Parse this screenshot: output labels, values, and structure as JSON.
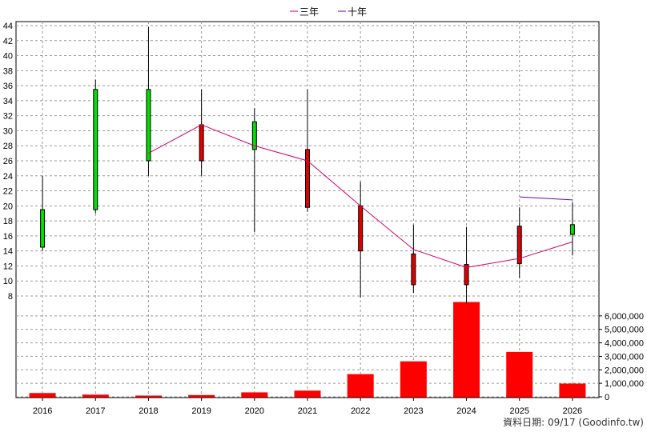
{
  "chart_data": {
    "type": "candlestick",
    "categories": [
      "2016",
      "2017",
      "2018",
      "2019",
      "2020",
      "2021",
      "2022",
      "2023",
      "2024",
      "2025",
      "2026"
    ],
    "candles": [
      {
        "open": 14.5,
        "close": 19.5,
        "high": 24.0,
        "low": 14.0
      },
      {
        "open": 19.5,
        "close": 35.5,
        "high": 36.8,
        "low": 19.0
      },
      {
        "open": 26.0,
        "close": 35.5,
        "high": 43.8,
        "low": 24.0
      },
      {
        "open": 30.8,
        "close": 26.0,
        "high": 35.5,
        "low": 24.0
      },
      {
        "open": 27.5,
        "close": 31.2,
        "high": 33.0,
        "low": 16.5
      },
      {
        "open": 27.5,
        "close": 19.8,
        "high": 35.5,
        "low": 19.2
      },
      {
        "open": 20.0,
        "close": 14.0,
        "high": 23.2,
        "low": 7.8
      },
      {
        "open": 13.6,
        "close": 9.5,
        "high": 17.5,
        "low": 8.4
      },
      {
        "open": 12.2,
        "close": 9.5,
        "high": 17.2,
        "low": 7.0
      },
      {
        "open": 17.3,
        "close": 12.3,
        "high": 19.8,
        "low": 10.4
      },
      {
        "open": 16.2,
        "close": 17.5,
        "high": 20.5,
        "low": 13.4
      }
    ],
    "lines": [
      {
        "name": "三年",
        "color": "#d4006e",
        "values": [
          null,
          null,
          27.0,
          30.8,
          28.0,
          26.0,
          20.0,
          14.2,
          11.8,
          13.0,
          15.2
        ]
      },
      {
        "name": "十年",
        "color": "#6a00cc",
        "values": [
          null,
          null,
          null,
          null,
          null,
          null,
          null,
          null,
          null,
          21.2,
          20.8
        ]
      }
    ],
    "volume": [
      250000,
      130000,
      60000,
      100000,
      300000,
      430000,
      1650000,
      2600000,
      7000000,
      3300000,
      950000
    ],
    "price_ylim": [
      8,
      44
    ],
    "price_ticks": [
      8,
      10,
      12,
      14,
      16,
      18,
      20,
      22,
      24,
      26,
      28,
      30,
      32,
      34,
      36,
      38,
      40,
      42,
      44
    ],
    "volume_ylim": [
      0,
      7000000
    ],
    "volume_ticks": [
      "0",
      "1,000,000",
      "2,000,000",
      "3,000,000",
      "4,000,000",
      "5,000,000",
      "6,000,000"
    ],
    "legend_position": "top-center",
    "grid": true,
    "colors": {
      "up": "#00e000",
      "down": "#e00000",
      "volume": "#ff0000",
      "grid": "#999999"
    }
  },
  "credit": "資料日期: 09/17  (Goodinfo.tw)"
}
